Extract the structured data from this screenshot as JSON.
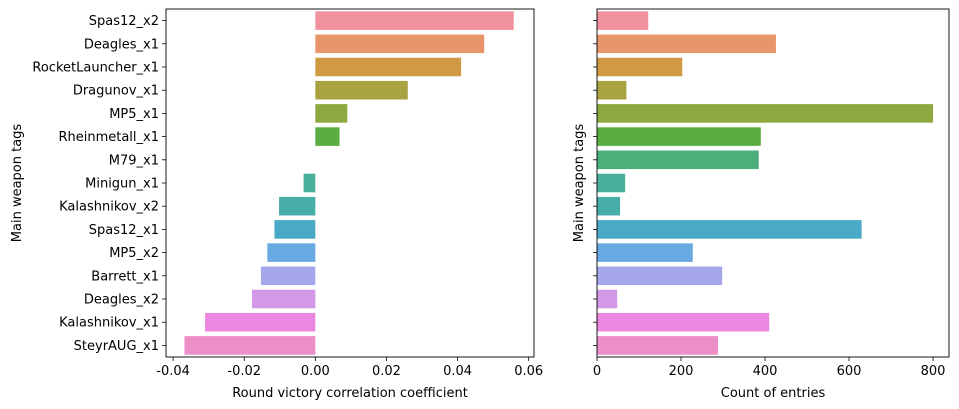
{
  "chart_data": [
    {
      "type": "bar",
      "orientation": "horizontal",
      "title": "",
      "xlabel": "Round victory correlation coefficient",
      "ylabel": "Main weapon tags",
      "xlim": [
        -0.042,
        0.0615
      ],
      "xticks": [
        "-0.04",
        "-0.02",
        "0.00",
        "0.02",
        "0.04",
        "0.06"
      ],
      "xtick_values": [
        -0.04,
        -0.02,
        0.0,
        0.02,
        0.04,
        0.06
      ],
      "grid": false,
      "legend": "none",
      "categories": [
        "Spas12_x2",
        "Deagles_x1",
        "RocketLauncher_x1",
        "Dragunov_x1",
        "MP5_x1",
        "Rheinmetall_x1",
        "M79_x1",
        "Minigun_x1",
        "Kalashnikov_x2",
        "Spas12_x1",
        "MP5_x2",
        "Barrett_x1",
        "Deagles_x2",
        "Kalashnikov_x1",
        "SteyrAUG_x1"
      ],
      "values": [
        0.0558,
        0.0475,
        0.041,
        0.026,
        0.009,
        0.0068,
        0.0,
        -0.0033,
        -0.0102,
        -0.0115,
        -0.0135,
        -0.0153,
        -0.0178,
        -0.031,
        -0.0368
      ],
      "colors": [
        "#f0929e",
        "#e8956c",
        "#d09a45",
        "#a9a240",
        "#8fa83f",
        "#5aad42",
        "#4aaf7b",
        "#4aaf9a",
        "#47ada9",
        "#4aa9c6",
        "#69a9e2",
        "#a6a6ea",
        "#d498e9",
        "#ec87df",
        "#ec8fc6"
      ]
    },
    {
      "type": "bar",
      "orientation": "horizontal",
      "title": "",
      "xlabel": "Count of entries",
      "ylabel": "Main weapon tags",
      "xlim": [
        0,
        838
      ],
      "xticks": [
        "0",
        "200",
        "400",
        "600",
        "800"
      ],
      "xtick_values": [
        0,
        200,
        400,
        600,
        800
      ],
      "grid": false,
      "legend": "none",
      "categories": [
        "Spas12_x2",
        "Deagles_x1",
        "RocketLauncher_x1",
        "Dragunov_x1",
        "MP5_x1",
        "Rheinmetall_x1",
        "M79_x1",
        "Minigun_x1",
        "Kalashnikov_x2",
        "Spas12_x1",
        "MP5_x2",
        "Barrett_x1",
        "Deagles_x2",
        "Kalashnikov_x1",
        "SteyrAUG_x1"
      ],
      "values": [
        122,
        426,
        203,
        70,
        800,
        390,
        385,
        67,
        55,
        630,
        228,
        298,
        48,
        410,
        288
      ],
      "colors": [
        "#f0929e",
        "#e8956c",
        "#d09a45",
        "#a9a240",
        "#8fa83f",
        "#5aad42",
        "#4aaf7b",
        "#4aaf9a",
        "#47ada9",
        "#4aa9c6",
        "#69a9e2",
        "#a6a6ea",
        "#d498e9",
        "#ec87df",
        "#ec8fc6"
      ]
    }
  ]
}
